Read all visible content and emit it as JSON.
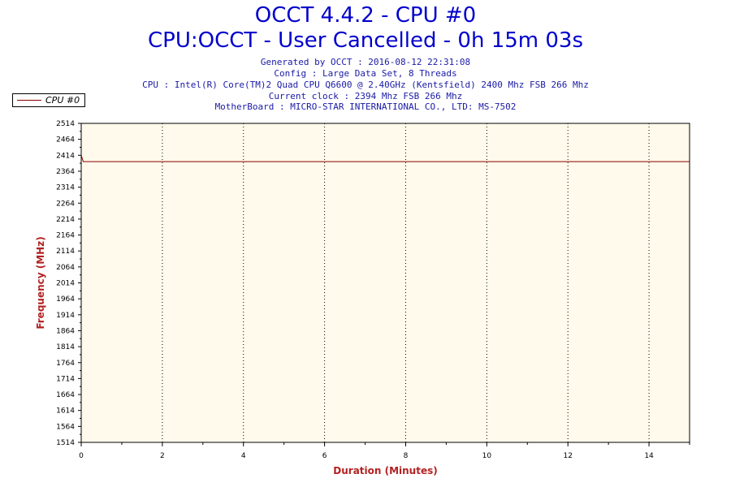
{
  "chart_data": {
    "type": "line",
    "title": "OCCT 4.4.2 - CPU #0",
    "subtitle": "CPU:OCCT - User Cancelled - 0h 15m 03s",
    "info_lines": [
      "Generated by OCCT : 2016-08-12 22:31:08",
      "Config : Large Data Set, 8 Threads",
      "CPU : Intel(R) Core(TM)2 Quad CPU Q6600 @ 2.40GHz (Kentsfield) 2400 Mhz FSB 266 Mhz",
      "Current clock : 2394 Mhz FSB 266 Mhz",
      "MotherBoard : MICRO-STAR INTERNATIONAL CO., LTD: MS-7502"
    ],
    "xlabel": "Duration (Minutes)",
    "ylabel": "Frequency (MHz)",
    "xlim": [
      0,
      15
    ],
    "ylim": [
      1514,
      2514
    ],
    "x_ticks": [
      0,
      2,
      4,
      6,
      8,
      10,
      12,
      14
    ],
    "y_ticks": [
      1514,
      1564,
      1614,
      1664,
      1714,
      1764,
      1814,
      1864,
      1914,
      1964,
      2014,
      2064,
      2114,
      2164,
      2214,
      2264,
      2314,
      2364,
      2414,
      2464,
      2514
    ],
    "grid": "vertical-dotted",
    "legend_position": "top-left",
    "series": [
      {
        "name": "CPU #0",
        "color": "#8b0000",
        "x": [
          0,
          0.05,
          15
        ],
        "y": [
          2414,
          2394,
          2394
        ]
      }
    ]
  },
  "colors": {
    "plot_bg": "#fffaeb",
    "title": "#0000cc",
    "info": "#1a1aa6",
    "axis_label": "#b22222",
    "series": "#8b0000"
  }
}
